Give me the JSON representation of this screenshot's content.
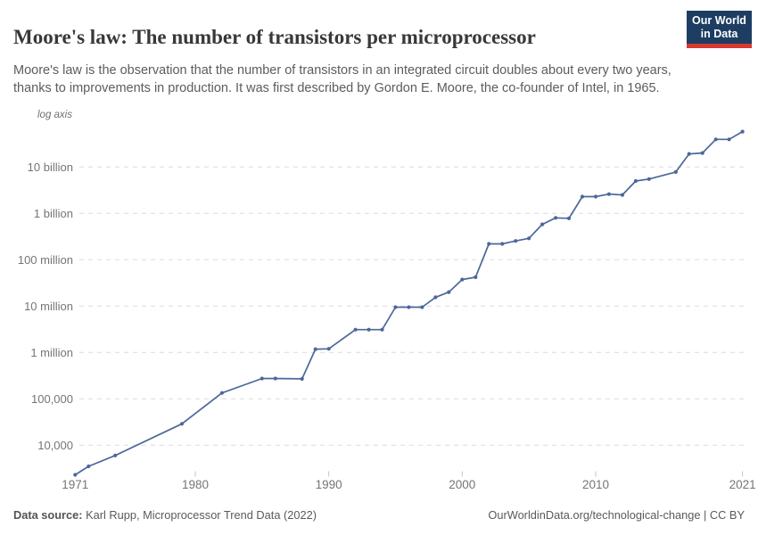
{
  "header": {
    "title": "Moore's law: The number of transistors per microprocessor",
    "subtitle": "Moore's law is the observation that the number of transistors in an integrated circuit doubles about every two years, thanks to improvements in production. It was first described by Gordon E. Moore, the co-founder of Intel, in 1965.",
    "logo": {
      "line1": "Our World",
      "line2": "in Data",
      "bg_color": "#1d3d63",
      "accent_color": "#d7382f"
    }
  },
  "chart_data": {
    "type": "line",
    "title": "Moore's law: The number of transistors per microprocessor",
    "log_axis_label": "log axis",
    "xlabel": "",
    "ylabel": "Transistors per microprocessor",
    "y_scale": "log",
    "x_range": [
      1971,
      2021
    ],
    "y_range": [
      2300,
      58000000000
    ],
    "grid": "horizontal-dashed",
    "legend_position": "none",
    "line_color": "#4c679a",
    "grid_color": "#dcdcdc",
    "axis_text_color": "#757575",
    "x_ticks": [
      1971,
      1980,
      1990,
      2000,
      2010,
      2021
    ],
    "y_ticks": [
      {
        "value": 10000,
        "label": "10,000"
      },
      {
        "value": 100000,
        "label": "100,000"
      },
      {
        "value": 1000000,
        "label": "1 million"
      },
      {
        "value": 10000000,
        "label": "10 million"
      },
      {
        "value": 100000000,
        "label": "100 million"
      },
      {
        "value": 1000000000,
        "label": "1 billion"
      },
      {
        "value": 10000000000,
        "label": "10 billion"
      }
    ],
    "series": [
      {
        "name": "Transistors per microprocessor",
        "points": [
          [
            1971,
            2300
          ],
          [
            1972,
            3500
          ],
          [
            1974,
            6000
          ],
          [
            1979,
            29000
          ],
          [
            1982,
            134000
          ],
          [
            1985,
            275000
          ],
          [
            1986,
            275000
          ],
          [
            1988,
            270000
          ],
          [
            1989,
            1180000
          ],
          [
            1990,
            1200000
          ],
          [
            1992,
            3100000
          ],
          [
            1993,
            3100000
          ],
          [
            1994,
            3100000
          ],
          [
            1995,
            9500000
          ],
          [
            1996,
            9500000
          ],
          [
            1997,
            9500000
          ],
          [
            1998,
            15500000
          ],
          [
            1999,
            20000000
          ],
          [
            2000,
            37500000
          ],
          [
            2001,
            42000000
          ],
          [
            2002,
            220000000
          ],
          [
            2003,
            220000000
          ],
          [
            2004,
            255000000
          ],
          [
            2005,
            290000000
          ],
          [
            2006,
            580000000
          ],
          [
            2007,
            800000000
          ],
          [
            2008,
            780000000
          ],
          [
            2009,
            2300000000
          ],
          [
            2010,
            2300000000
          ],
          [
            2011,
            2600000000
          ],
          [
            2012,
            2500000000
          ],
          [
            2013,
            5000000000
          ],
          [
            2014,
            5500000000
          ],
          [
            2016,
            7800000000
          ],
          [
            2017,
            19200000000
          ],
          [
            2018,
            20000000000
          ],
          [
            2019,
            39500000000
          ],
          [
            2020,
            39500000000
          ],
          [
            2021,
            58000000000
          ]
        ]
      }
    ]
  },
  "footer": {
    "source_label": "Data source:",
    "source_text": " Karl Rupp, Microprocessor Trend Data (2022)",
    "rights": "OurWorldinData.org/technological-change | CC BY"
  }
}
